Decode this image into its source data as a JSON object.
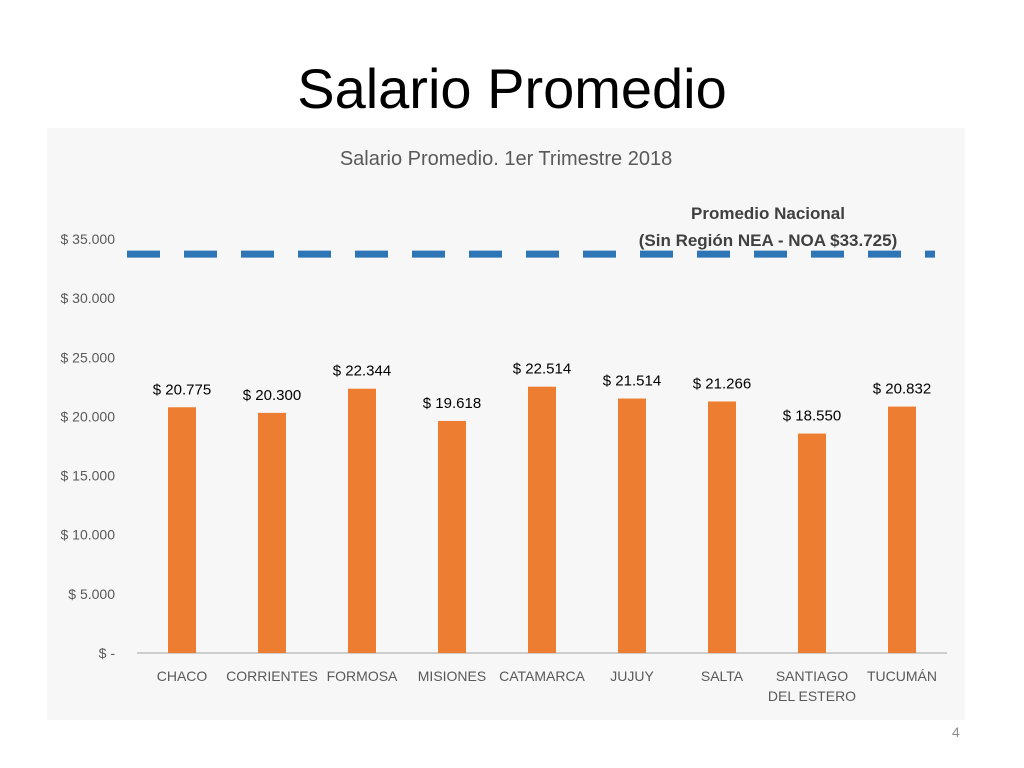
{
  "slide": {
    "title": "Salario Promedio",
    "page_number": "4"
  },
  "colors": {
    "bar": "#ED7D31",
    "reference_line": "#2E75B6",
    "background": "#F7F7F7",
    "axis": "#595959"
  },
  "chart_data": {
    "type": "bar",
    "title": "Salario Promedio. 1er Trimestre 2018",
    "categories": [
      [
        "CHACO"
      ],
      [
        "CORRIENTES"
      ],
      [
        "FORMOSA"
      ],
      [
        "MISIONES"
      ],
      [
        "CATAMARCA"
      ],
      [
        "JUJUY"
      ],
      [
        "SALTA"
      ],
      [
        "SANTIAGO",
        "DEL ESTERO"
      ],
      [
        "TUCUMÁN"
      ]
    ],
    "values": [
      20775,
      20300,
      22344,
      19618,
      22514,
      21514,
      21266,
      18550,
      20832
    ],
    "data_labels": [
      "$ 20.775",
      "$ 20.300",
      "$ 22.344",
      "$ 19.618",
      "$ 22.514",
      "$ 21.514",
      "$ 21.266",
      "$ 18.550",
      "$ 20.832"
    ],
    "ylim": [
      0,
      35000
    ],
    "yticks": [
      0,
      5000,
      10000,
      15000,
      20000,
      25000,
      30000,
      35000
    ],
    "ytick_labels": [
      "$ -",
      "$ 5.000",
      "$ 10.000",
      "$ 15.000",
      "$ 20.000",
      "$ 25.000",
      "$ 30.000",
      "$ 35.000"
    ],
    "grid": false,
    "legend": "none",
    "reference_line": {
      "value": 33725,
      "style": "dashed",
      "label_lines": [
        "Promedio Nacional",
        "(Sin Región NEA - NOA $33.725)"
      ]
    }
  }
}
